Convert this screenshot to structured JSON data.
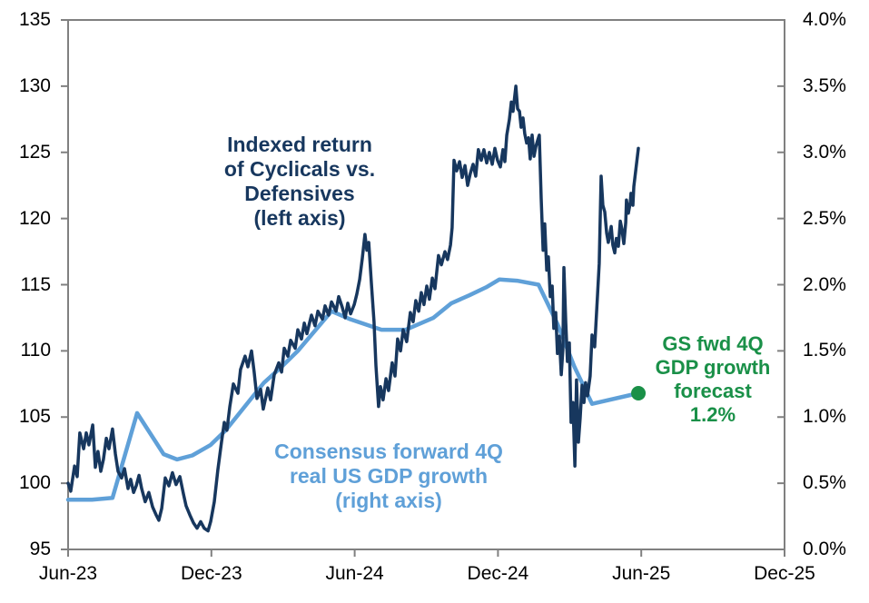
{
  "chart_data": {
    "type": "line",
    "title": "",
    "frame_color": "#808080",
    "x_axis": {
      "unit": "months_since_jun_2023",
      "range": [
        0,
        30
      ],
      "ticks": [
        {
          "label": "Jun-23",
          "t": 0
        },
        {
          "label": "Dec-23",
          "t": 6
        },
        {
          "label": "Jun-24",
          "t": 12
        },
        {
          "label": "Dec-24",
          "t": 18
        },
        {
          "label": "Jun-25",
          "t": 24
        },
        {
          "label": "Dec-25",
          "t": 30
        }
      ]
    },
    "y_left": {
      "range": [
        95,
        135
      ],
      "ticks": [
        {
          "label": "135",
          "value": 135
        },
        {
          "label": "130",
          "value": 130
        },
        {
          "label": "125",
          "value": 125
        },
        {
          "label": "120",
          "value": 120
        },
        {
          "label": "115",
          "value": 115
        },
        {
          "label": "110",
          "value": 110
        },
        {
          "label": "105",
          "value": 105
        },
        {
          "label": "100",
          "value": 100
        },
        {
          "label": "95",
          "value": 95
        }
      ]
    },
    "y_right": {
      "range_pct": [
        0,
        4
      ],
      "ticks": [
        {
          "label": "4.0%",
          "value": 4.0
        },
        {
          "label": "3.5%",
          "value": 3.5
        },
        {
          "label": "3.0%",
          "value": 3.0
        },
        {
          "label": "2.5%",
          "value": 2.5
        },
        {
          "label": "2.0%",
          "value": 2.0
        },
        {
          "label": "1.5%",
          "value": 1.5
        },
        {
          "label": "1.0%",
          "value": 1.0
        },
        {
          "label": "0.5%",
          "value": 0.5
        },
        {
          "label": "0.0%",
          "value": 0.0
        }
      ]
    },
    "series": [
      {
        "name": "Indexed return of Cyclicals vs. Defensives (left axis)",
        "axis": "left",
        "color": "#17375e",
        "stroke_width": 3.5,
        "points": [
          [
            0,
            100
          ],
          [
            0.11,
            99.4
          ],
          [
            0.27,
            101.3
          ],
          [
            0.38,
            100.5
          ],
          [
            0.49,
            103.8
          ],
          [
            0.65,
            102.6
          ],
          [
            0.76,
            103.8
          ],
          [
            0.87,
            102.9
          ],
          [
            1.03,
            104.4
          ],
          [
            1.14,
            101.2
          ],
          [
            1.25,
            102.4
          ],
          [
            1.37,
            100.9
          ],
          [
            1.48,
            101.8
          ],
          [
            1.6,
            103.4
          ],
          [
            1.71,
            102.6
          ],
          [
            1.86,
            104.1
          ],
          [
            1.98,
            102.2
          ],
          [
            2.09,
            100.9
          ],
          [
            2.24,
            100.4
          ],
          [
            2.36,
            101.1
          ],
          [
            2.51,
            99.6
          ],
          [
            2.62,
            100.3
          ],
          [
            2.74,
            99.3
          ],
          [
            2.85,
            99.8
          ],
          [
            2.97,
            100.6
          ],
          [
            3.08,
            99.6
          ],
          [
            3.23,
            98.6
          ],
          [
            3.38,
            99.3
          ],
          [
            3.54,
            98.2
          ],
          [
            3.69,
            97.6
          ],
          [
            3.8,
            97.2
          ],
          [
            3.92,
            98.1
          ],
          [
            4.07,
            100.4
          ],
          [
            4.22,
            99.8
          ],
          [
            4.37,
            100.8
          ],
          [
            4.52,
            99.9
          ],
          [
            4.68,
            100.5
          ],
          [
            4.83,
            99.2
          ],
          [
            4.94,
            98.3
          ],
          [
            5.1,
            97.6
          ],
          [
            5.25,
            97
          ],
          [
            5.4,
            96.6
          ],
          [
            5.55,
            97.1
          ],
          [
            5.7,
            96.6
          ],
          [
            5.86,
            96.4
          ],
          [
            5.97,
            97.1
          ],
          [
            6.12,
            98.6
          ],
          [
            6.27,
            101
          ],
          [
            6.43,
            103.2
          ],
          [
            6.54,
            104.6
          ],
          [
            6.65,
            104
          ],
          [
            6.77,
            105.8
          ],
          [
            6.92,
            107.5
          ],
          [
            7.11,
            106.8
          ],
          [
            7.22,
            108.6
          ],
          [
            7.41,
            109.6
          ],
          [
            7.53,
            108.8
          ],
          [
            7.68,
            110
          ],
          [
            7.79,
            108.4
          ],
          [
            7.91,
            106.4
          ],
          [
            8.06,
            107.1
          ],
          [
            8.17,
            105.6
          ],
          [
            8.36,
            107.2
          ],
          [
            8.48,
            106.3
          ],
          [
            8.63,
            108.2
          ],
          [
            8.82,
            109.1
          ],
          [
            8.94,
            108.4
          ],
          [
            9.05,
            110.2
          ],
          [
            9.2,
            109.6
          ],
          [
            9.32,
            110.8
          ],
          [
            9.51,
            110.2
          ],
          [
            9.62,
            111.6
          ],
          [
            9.77,
            110.9
          ],
          [
            9.89,
            112.1
          ],
          [
            10,
            111.3
          ],
          [
            10.19,
            112.7
          ],
          [
            10.34,
            111.9
          ],
          [
            10.46,
            113
          ],
          [
            10.65,
            112.4
          ],
          [
            10.76,
            113.4
          ],
          [
            10.91,
            112.7
          ],
          [
            11.03,
            113.7
          ],
          [
            11.22,
            113
          ],
          [
            11.33,
            114.1
          ],
          [
            11.48,
            113.3
          ],
          [
            11.6,
            112.5
          ],
          [
            11.71,
            113.6
          ],
          [
            11.83,
            112.8
          ],
          [
            11.98,
            113.5
          ],
          [
            12.09,
            114.3
          ],
          [
            12.21,
            115.4
          ],
          [
            12.32,
            117
          ],
          [
            12.43,
            118.8
          ],
          [
            12.51,
            117.6
          ],
          [
            12.59,
            118.2
          ],
          [
            12.7,
            115.1
          ],
          [
            12.81,
            112.2
          ],
          [
            12.89,
            108.9
          ],
          [
            13,
            105.8
          ],
          [
            13.08,
            107.3
          ],
          [
            13.19,
            106.3
          ],
          [
            13.31,
            107.9
          ],
          [
            13.42,
            107
          ],
          [
            13.57,
            109.1
          ],
          [
            13.69,
            108.1
          ],
          [
            13.8,
            110.9
          ],
          [
            13.92,
            110
          ],
          [
            14.03,
            111.6
          ],
          [
            14.18,
            110.7
          ],
          [
            14.33,
            112.9
          ],
          [
            14.45,
            112.2
          ],
          [
            14.56,
            113.8
          ],
          [
            14.68,
            113
          ],
          [
            14.79,
            114.4
          ],
          [
            14.9,
            113.5
          ],
          [
            15.02,
            114.9
          ],
          [
            15.13,
            113.9
          ],
          [
            15.25,
            115.5
          ],
          [
            15.36,
            114.7
          ],
          [
            15.51,
            117.2
          ],
          [
            15.63,
            116.5
          ],
          [
            15.78,
            117.5
          ],
          [
            15.89,
            116.9
          ],
          [
            16.01,
            118
          ],
          [
            16.08,
            119.3
          ],
          [
            16.16,
            124.4
          ],
          [
            16.27,
            123.6
          ],
          [
            16.39,
            124.3
          ],
          [
            16.5,
            123.1
          ],
          [
            16.62,
            124
          ],
          [
            16.73,
            122.5
          ],
          [
            16.84,
            123.4
          ],
          [
            16.96,
            124.1
          ],
          [
            17.07,
            123.2
          ],
          [
            17.18,
            125.2
          ],
          [
            17.3,
            124.4
          ],
          [
            17.41,
            125.2
          ],
          [
            17.53,
            124.2
          ],
          [
            17.64,
            125
          ],
          [
            17.76,
            124.1
          ],
          [
            17.87,
            125.3
          ],
          [
            17.98,
            124.4
          ],
          [
            18.1,
            123.9
          ],
          [
            18.21,
            125.2
          ],
          [
            18.29,
            124.3
          ],
          [
            18.37,
            126.3
          ],
          [
            18.48,
            127.5
          ],
          [
            18.56,
            128.8
          ],
          [
            18.63,
            128.1
          ],
          [
            18.75,
            130
          ],
          [
            18.82,
            128.3
          ],
          [
            18.9,
            128.1
          ],
          [
            18.97,
            126.9
          ],
          [
            19.05,
            127.6
          ],
          [
            19.12,
            126.4
          ],
          [
            19.2,
            125.7
          ],
          [
            19.28,
            126.1
          ],
          [
            19.35,
            124.5
          ],
          [
            19.43,
            126.3
          ],
          [
            19.51,
            124.7
          ],
          [
            19.58,
            125.4
          ],
          [
            19.66,
            125.9
          ],
          [
            19.73,
            126.3
          ],
          [
            19.81,
            121.5
          ],
          [
            19.89,
            117.6
          ],
          [
            19.96,
            119.6
          ],
          [
            20.04,
            116.1
          ],
          [
            20.11,
            117.1
          ],
          [
            20.19,
            114.1
          ],
          [
            20.27,
            114.9
          ],
          [
            20.34,
            111.7
          ],
          [
            20.42,
            112.9
          ],
          [
            20.49,
            109.8
          ],
          [
            20.57,
            111.1
          ],
          [
            20.65,
            108.2
          ],
          [
            20.72,
            110.1
          ],
          [
            20.76,
            116.3
          ],
          [
            20.84,
            112.1
          ],
          [
            20.91,
            109.2
          ],
          [
            20.99,
            110.6
          ],
          [
            21.06,
            104.6
          ],
          [
            21.14,
            106.1
          ],
          [
            21.22,
            101.3
          ],
          [
            21.29,
            107.8
          ],
          [
            21.37,
            103.1
          ],
          [
            21.44,
            104.9
          ],
          [
            21.52,
            107.4
          ],
          [
            21.6,
            106.1
          ],
          [
            21.67,
            107.6
          ],
          [
            21.75,
            106.6
          ],
          [
            21.86,
            108.1
          ],
          [
            21.94,
            111.2
          ],
          [
            22.05,
            110.3
          ],
          [
            22.17,
            114.3
          ],
          [
            22.24,
            116.6
          ],
          [
            22.32,
            123.2
          ],
          [
            22.39,
            121
          ],
          [
            22.47,
            120.5
          ],
          [
            22.55,
            118.9
          ],
          [
            22.62,
            118.2
          ],
          [
            22.74,
            119.4
          ],
          [
            22.81,
            118
          ],
          [
            22.89,
            117.4
          ],
          [
            22.96,
            118.5
          ],
          [
            23.04,
            117.9
          ],
          [
            23.12,
            119.8
          ],
          [
            23.19,
            119.2
          ],
          [
            23.27,
            118.1
          ],
          [
            23.35,
            119.7
          ],
          [
            23.38,
            121.4
          ],
          [
            23.46,
            120.4
          ],
          [
            23.54,
            121.2
          ],
          [
            23.57,
            121.9
          ],
          [
            23.65,
            121
          ],
          [
            23.69,
            122.4
          ],
          [
            23.76,
            123.5
          ],
          [
            23.88,
            125.3
          ]
        ]
      },
      {
        "name": "Consensus forward 4Q real US GDP growth (right axis)",
        "axis": "right",
        "color": "#5fa0d8",
        "stroke_width": 4.5,
        "points": [
          [
            0,
            0.375
          ],
          [
            1.0,
            0.375
          ],
          [
            1.86,
            0.39
          ],
          [
            2.89,
            1.03
          ],
          [
            4.0,
            0.72
          ],
          [
            4.56,
            0.68
          ],
          [
            5.2,
            0.71
          ],
          [
            5.97,
            0.79
          ],
          [
            6.6,
            0.9
          ],
          [
            7.4,
            1.08
          ],
          [
            8.2,
            1.26
          ],
          [
            8.94,
            1.38
          ],
          [
            9.62,
            1.5
          ],
          [
            11.03,
            1.8
          ],
          [
            11.8,
            1.74
          ],
          [
            13.12,
            1.66
          ],
          [
            14.14,
            1.66
          ],
          [
            15.3,
            1.75
          ],
          [
            16.05,
            1.86
          ],
          [
            16.8,
            1.92
          ],
          [
            17.5,
            1.98
          ],
          [
            18.06,
            2.04
          ],
          [
            18.8,
            2.03
          ],
          [
            19.7,
            2.0
          ],
          [
            20.5,
            1.7
          ],
          [
            21.2,
            1.38
          ],
          [
            21.94,
            1.1
          ],
          [
            23.88,
            1.18
          ]
        ]
      }
    ],
    "forecast_point": {
      "name": "GS fwd 4Q GDP growth forecast",
      "axis": "right",
      "t": 23.88,
      "value_pct": 1.18,
      "label": "1.2%",
      "color": "#1a9048",
      "radius": 8
    },
    "annotations": [
      {
        "id": "indexed-return-label",
        "color": "#17375e",
        "lines": [
          "Indexed return",
          "of Cyclicals vs.",
          "Defensives",
          "(left axis)"
        ]
      },
      {
        "id": "consensus-label",
        "color": "#5fa0d8",
        "lines": [
          "Consensus forward 4Q",
          "real US GDP growth",
          "(right axis)"
        ]
      },
      {
        "id": "gs-forecast-label",
        "color": "#1a9048",
        "lines": [
          "GS fwd 4Q",
          "GDP growth",
          "forecast",
          "1.2%"
        ]
      }
    ]
  }
}
